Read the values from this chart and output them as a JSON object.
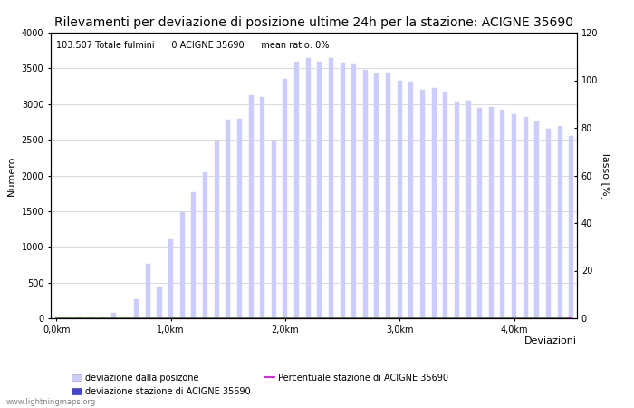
{
  "title": "Rilevamenti per deviazione di posizione ultime 24h per la stazione: ACIGNE 35690",
  "annotation": "103.507 Totale fulmini      0 ACIGNE 35690      mean ratio: 0%",
  "ylabel_left": "Numero",
  "ylabel_right": "Tasso [%]",
  "xlabel": "Deviazioni",
  "watermark": "www.lightningmaps.org",
  "ylim_left": [
    0,
    4000
  ],
  "ylim_right": [
    0,
    120
  ],
  "yticks_left": [
    0,
    500,
    1000,
    1500,
    2000,
    2500,
    3000,
    3500,
    4000
  ],
  "yticks_right": [
    0,
    20,
    40,
    60,
    80,
    100,
    120
  ],
  "xtick_labels": [
    "0,0km",
    "1,0km",
    "2,0km",
    "3,0km",
    "4,0km"
  ],
  "xtick_positions": [
    0,
    10,
    20,
    30,
    40
  ],
  "bar_color_light": "#ccccff",
  "bar_color_dark": "#4444cc",
  "line_color": "#cc00cc",
  "bar_width": 0.4,
  "total_bars": 46,
  "bar_values": [
    5,
    5,
    10,
    15,
    10,
    80,
    5,
    270,
    760,
    440,
    1100,
    1480,
    1760,
    2050,
    2470,
    2780,
    2790,
    3130,
    3100,
    2490,
    3350,
    3600,
    3650,
    3600,
    3650,
    3580,
    3560,
    3480,
    3430,
    3440,
    3330,
    3310,
    3200,
    3220,
    3180,
    3040,
    3050,
    2950,
    2960,
    2920,
    2860,
    2820,
    2750,
    2660,
    2690,
    2550
  ],
  "station_bar_values": [
    0,
    0,
    0,
    0,
    0,
    0,
    0,
    0,
    0,
    0,
    0,
    0,
    0,
    0,
    0,
    0,
    0,
    0,
    0,
    0,
    0,
    0,
    0,
    0,
    0,
    0,
    0,
    0,
    0,
    0,
    0,
    0,
    0,
    0,
    0,
    0,
    0,
    0,
    0,
    0,
    0,
    0,
    0,
    0,
    0,
    0
  ],
  "line_values": [
    0,
    0,
    0,
    0,
    0,
    0,
    0,
    0,
    0,
    0,
    0,
    0,
    0,
    0,
    0,
    0,
    0,
    0,
    0,
    0,
    0,
    0,
    0,
    0,
    0,
    0,
    0,
    0,
    0,
    0,
    0,
    0,
    0,
    0,
    0,
    0,
    0,
    0,
    0,
    0,
    0,
    0,
    0,
    0,
    0,
    0
  ],
  "bg_color": "#ffffff",
  "grid_color": "#cccccc",
  "text_color": "#000000",
  "font_size_title": 10,
  "font_size_labels": 8,
  "font_size_ticks": 7,
  "font_size_annotation": 7,
  "font_size_watermark": 6,
  "legend_label1": "deviazione dalla posizone",
  "legend_label2": "deviazione stazione di ACIGNE 35690",
  "legend_label3": "Percentuale stazione di ACIGNE 35690"
}
